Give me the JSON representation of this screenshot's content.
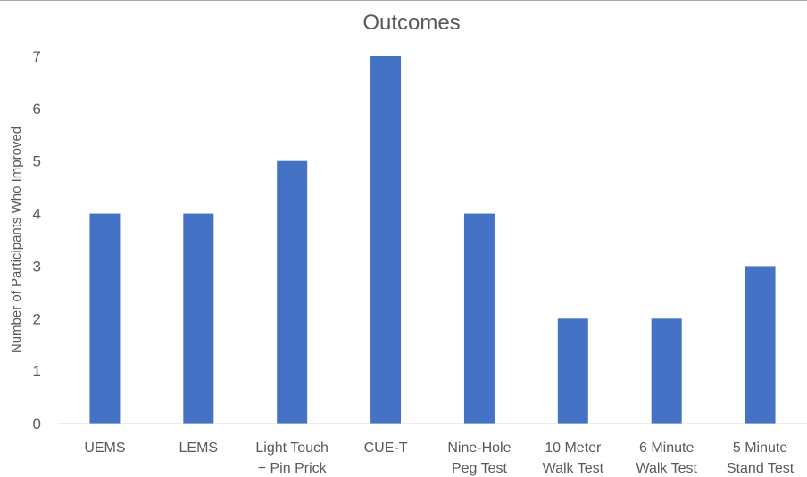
{
  "chart_data": {
    "type": "bar",
    "title": "Outcomes",
    "xlabel": "",
    "ylabel": "Number of Participants Who Improved",
    "categories": [
      [
        "UEMS"
      ],
      [
        "LEMS"
      ],
      [
        "Light Touch",
        "+ Pin Prick"
      ],
      [
        "CUE-T"
      ],
      [
        "Nine-Hole",
        "Peg Test"
      ],
      [
        "10 Meter",
        "Walk Test"
      ],
      [
        "6 Minute",
        "Walk Test"
      ],
      [
        "5 Minute",
        "Stand Test"
      ]
    ],
    "values": [
      4,
      4,
      5,
      7,
      4,
      2,
      2,
      3
    ],
    "ylim": [
      0,
      7
    ],
    "yticks": [
      0,
      1,
      2,
      3,
      4,
      5,
      6,
      7
    ],
    "grid": false,
    "legend": "none",
    "colors": {
      "bar": "#4472c4",
      "axis": "#d9d9d9",
      "text": "#595959"
    }
  }
}
